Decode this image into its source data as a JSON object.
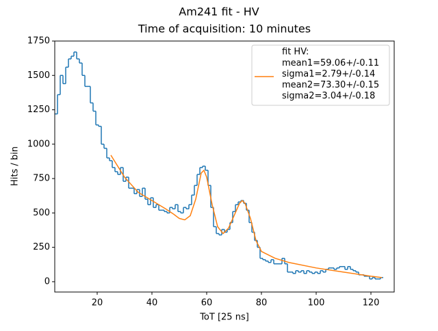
{
  "chart_data": {
    "type": "histogram",
    "title": "Am241 fit - HV",
    "subtitle": "Time of acquisition: 10 minutes",
    "x_label": "ToT [25 ns]",
    "y_label": "Hits / bin",
    "xlim": [
      4.5,
      128.5
    ],
    "ylim": [
      -75,
      1750
    ],
    "xticks": [
      20,
      40,
      60,
      80,
      100,
      120
    ],
    "yticks": [
      0,
      250,
      500,
      750,
      1000,
      1250,
      1500,
      1750
    ],
    "legend_header": "fit HV:",
    "series": [
      {
        "type": "histogram",
        "color": "#1f77b4",
        "bins": [
          4.5,
          5.5,
          6.5,
          7.5,
          8.5,
          9.5,
          10.5,
          11.5,
          12.5,
          13.5,
          14.5,
          15.5,
          16.5,
          17.5,
          18.5,
          19.5,
          20.5,
          21.5,
          22.5,
          23.5,
          24.5,
          25.5,
          26.5,
          27.5,
          28.5,
          29.5,
          30.5,
          31.5,
          32.5,
          33.5,
          34.5,
          35.5,
          36.5,
          37.5,
          38.5,
          39.5,
          40.5,
          41.5,
          42.5,
          43.5,
          44.5,
          45.5,
          46.5,
          47.5,
          48.5,
          49.5,
          50.5,
          51.5,
          52.5,
          53.5,
          54.5,
          55.5,
          56.5,
          57.5,
          58.5,
          59.5,
          60.5,
          61.5,
          62.5,
          63.5,
          64.5,
          65.5,
          66.5,
          67.5,
          68.5,
          69.5,
          70.5,
          71.5,
          72.5,
          73.5,
          74.5,
          75.5,
          76.5,
          77.5,
          78.5,
          79.5,
          80.5,
          81.5,
          82.5,
          83.5,
          84.5,
          85.5,
          86.5,
          87.5,
          88.5,
          89.5,
          90.5,
          91.5,
          92.5,
          93.5,
          94.5,
          95.5,
          96.5,
          97.5,
          98.5,
          99.5,
          100.5,
          101.5,
          102.5,
          103.5,
          104.5,
          105.5,
          106.5,
          107.5,
          108.5,
          109.5,
          110.5,
          111.5,
          112.5,
          113.5,
          114.5,
          115.5,
          116.5,
          117.5,
          118.5,
          119.5,
          120.5,
          121.5,
          122.5,
          123.5,
          124.5
        ],
        "values": [
          1220,
          1360,
          1500,
          1440,
          1560,
          1620,
          1640,
          1670,
          1620,
          1590,
          1500,
          1420,
          1420,
          1300,
          1240,
          1140,
          1130,
          1000,
          970,
          900,
          880,
          830,
          800,
          780,
          830,
          730,
          760,
          680,
          680,
          640,
          670,
          620,
          680,
          600,
          560,
          610,
          540,
          560,
          520,
          520,
          510,
          500,
          540,
          530,
          560,
          510,
          500,
          540,
          530,
          560,
          630,
          700,
          780,
          830,
          840,
          810,
          700,
          540,
          400,
          350,
          340,
          380,
          360,
          380,
          430,
          510,
          560,
          580,
          590,
          570,
          520,
          430,
          360,
          300,
          250,
          170,
          160,
          150,
          140,
          160,
          130,
          130,
          130,
          170,
          130,
          70,
          70,
          60,
          80,
          70,
          80,
          60,
          80,
          70,
          60,
          70,
          60,
          80,
          70,
          90,
          100,
          100,
          90,
          100,
          110,
          110,
          90,
          110,
          90,
          80,
          70,
          50,
          50,
          40,
          40,
          20,
          30,
          20,
          20,
          30
        ]
      },
      {
        "type": "line",
        "color": "#ff7f0e",
        "name": "mean1=59.06+/-0.11\nsigma1=2.79+/-0.14\nmean2=73.30+/-0.15\nsigma2=3.04+/-0.18",
        "x": [
          25,
          30,
          35,
          40,
          45,
          48,
          50,
          52,
          54,
          56,
          58,
          59,
          60,
          62,
          64,
          66,
          68,
          70,
          72,
          73,
          74,
          76,
          78,
          80,
          85,
          90,
          100,
          110,
          120,
          124
        ],
        "values": [
          920,
          760,
          650,
          590,
          530,
          490,
          460,
          450,
          480,
          600,
          790,
          810,
          760,
          560,
          400,
          350,
          390,
          480,
          570,
          590,
          570,
          460,
          300,
          220,
          170,
          140,
          100,
          70,
          40,
          30
        ]
      }
    ]
  }
}
